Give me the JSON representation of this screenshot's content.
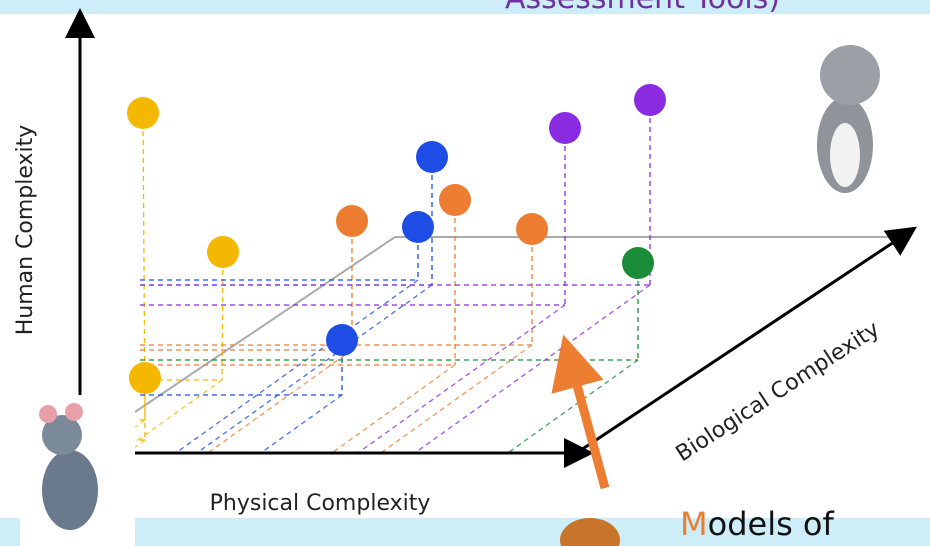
{
  "header": {
    "title": "Assessment Tools)"
  },
  "axes": {
    "vertical": "Human Complexity",
    "horizontal": "Physical Complexity",
    "depth": "Biological Complexity"
  },
  "caption": {
    "initial": "M",
    "rest": "odels of"
  }
}
